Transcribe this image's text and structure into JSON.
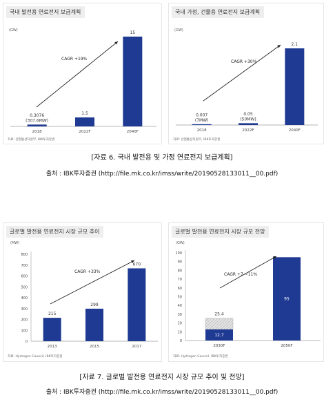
{
  "captions": {
    "top": "[자료 6. 국내 발전용 및 가정 연료전지 보급계획]",
    "top_source": "출처 : IBK투자증권 (http://file.mk.co.kr/imss/write/20190528133011__00.pdf)",
    "bottom": "[자료 7. 글로벌 발전용 연료전지 시장 규모 추이 및 전망]",
    "bottom_source": "출처 : IBK투자증권 (http://file.mk.co.kr/imss/write/20190528133011__00.pdf)"
  },
  "colors": {
    "bar": "#1f3a93",
    "hatch": "#bdbdbd",
    "axis": "#9e9e9e",
    "text": "#333333"
  },
  "chart_data": [
    {
      "type": "bar",
      "title": "국내 발전용 연료전지 보급계획",
      "unit_label": "(GW)",
      "categories": [
        "2018",
        "2022F",
        "2040F"
      ],
      "values": [
        0.3076,
        1.5,
        15
      ],
      "value_labels": [
        "0.3076\n(307.6MW)",
        "1.5",
        "15"
      ],
      "ylim": [
        0,
        15
      ],
      "annotation": "CAGR +19%",
      "source": "자료: 산업통상자원부, IBK투자증권"
    },
    {
      "type": "bar",
      "title": "국내 가정, 건물용 연료전지 보급계획",
      "unit_label": "(GW)",
      "categories": [
        "2018",
        "2022F",
        "2040F"
      ],
      "values": [
        0.007,
        0.05,
        2.1
      ],
      "value_labels": [
        "0.007\n(7MW)",
        "0.05\n(50MW)",
        "2.1"
      ],
      "ylim": [
        0,
        2.1
      ],
      "annotation": "CAGR +30%",
      "source": "자료: 산업통상자원부, IBK투자증권"
    },
    {
      "type": "bar",
      "title": "글로벌 발전용 연료전지 시장 규모 추이",
      "unit_label": "(MW)",
      "categories": [
        "2013",
        "2015",
        "2017"
      ],
      "values": [
        215,
        299,
        670
      ],
      "value_labels": [
        "215",
        "299",
        "670"
      ],
      "yticks": [
        0,
        100,
        200,
        300,
        400,
        500,
        600,
        700,
        800
      ],
      "ylim": [
        0,
        800
      ],
      "annotation": "CAGR +33%",
      "source": "자료: Hydrogen Council, IBK투자증권"
    },
    {
      "type": "bar",
      "title": "글로벌 발전용 연료전지 시장 규모 전망",
      "unit_label": "(GW)",
      "categories": [
        "2030F",
        "2050F"
      ],
      "values": [
        12.7,
        95
      ],
      "stacked_hatched": [
        12.7,
        null
      ],
      "value_labels_inside": [
        "12.7",
        "95"
      ],
      "value_labels_top": [
        "25.4",
        ""
      ],
      "yticks": [
        0,
        10,
        20,
        30,
        40,
        50,
        60,
        70,
        80,
        90,
        100
      ],
      "ylim": [
        0,
        100
      ],
      "annotation": "CAGR +7 ~11%",
      "source": "자료: Hydrogen Council, IBK투자증권"
    }
  ]
}
